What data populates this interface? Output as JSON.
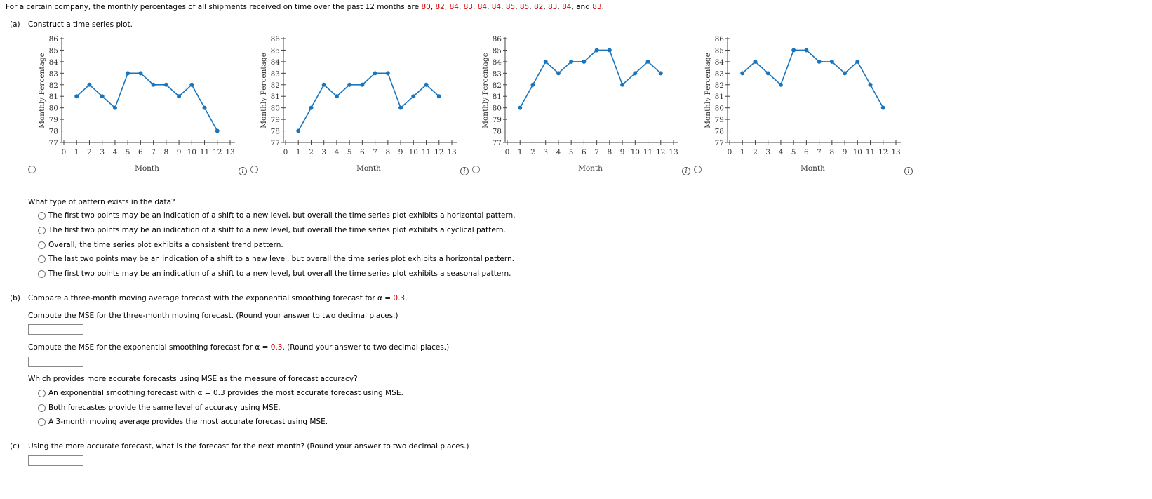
{
  "intro": {
    "lead": "For a certain company, the monthly percentages of all shipments received on time over the past 12 months are ",
    "values": [
      80,
      82,
      84,
      83,
      84,
      84,
      85,
      85,
      82,
      83,
      84,
      83
    ],
    "separators": [
      ", ",
      ", ",
      ", ",
      ", ",
      ", ",
      ", ",
      ", ",
      ", ",
      ", ",
      ", ",
      ", and "
    ],
    "end": "."
  },
  "part_a": {
    "label": "(a)",
    "prompt": "Construct a time series plot.",
    "charts": [
      {
        "type": "line",
        "x": [
          1,
          2,
          3,
          4,
          5,
          6,
          7,
          8,
          9,
          10,
          11,
          12
        ],
        "values": [
          81,
          82,
          81,
          80,
          83,
          83,
          82,
          82,
          81,
          82,
          80,
          78
        ],
        "color": "#1a75bc",
        "xlabel": "Month",
        "ylabel": "Monthly Percentage",
        "xlim": [
          0,
          13
        ],
        "xticks": [
          0,
          1,
          2,
          3,
          4,
          5,
          6,
          7,
          8,
          9,
          10,
          11,
          12,
          13
        ],
        "ylim": [
          77,
          86
        ],
        "yticks": [
          77,
          78,
          79,
          80,
          81,
          82,
          83,
          84,
          85,
          86
        ]
      },
      {
        "type": "line",
        "x": [
          1,
          2,
          3,
          4,
          5,
          6,
          7,
          8,
          9,
          10,
          11,
          12
        ],
        "values": [
          78,
          80,
          82,
          81,
          82,
          82,
          83,
          83,
          80,
          81,
          82,
          81
        ],
        "color": "#1a75bc",
        "xlabel": "Month",
        "ylabel": "Monthly Percentage",
        "xlim": [
          0,
          13
        ],
        "xticks": [
          0,
          1,
          2,
          3,
          4,
          5,
          6,
          7,
          8,
          9,
          10,
          11,
          12,
          13
        ],
        "ylim": [
          77,
          86
        ],
        "yticks": [
          77,
          78,
          79,
          80,
          81,
          82,
          83,
          84,
          85,
          86
        ]
      },
      {
        "type": "line",
        "x": [
          1,
          2,
          3,
          4,
          5,
          6,
          7,
          8,
          9,
          10,
          11,
          12
        ],
        "values": [
          80,
          82,
          84,
          83,
          84,
          84,
          85,
          85,
          82,
          83,
          84,
          83
        ],
        "color": "#1a75bc",
        "xlabel": "Month",
        "ylabel": "Monthly Percentage",
        "xlim": [
          0,
          13
        ],
        "xticks": [
          0,
          1,
          2,
          3,
          4,
          5,
          6,
          7,
          8,
          9,
          10,
          11,
          12,
          13
        ],
        "ylim": [
          77,
          86
        ],
        "yticks": [
          77,
          78,
          79,
          80,
          81,
          82,
          83,
          84,
          85,
          86
        ]
      },
      {
        "type": "line",
        "x": [
          1,
          2,
          3,
          4,
          5,
          6,
          7,
          8,
          9,
          10,
          11,
          12
        ],
        "values": [
          83,
          84,
          83,
          82,
          85,
          85,
          84,
          84,
          83,
          84,
          82,
          80
        ],
        "color": "#1a75bc",
        "xlabel": "Month",
        "ylabel": "Monthly Percentage",
        "xlim": [
          0,
          13
        ],
        "xticks": [
          0,
          1,
          2,
          3,
          4,
          5,
          6,
          7,
          8,
          9,
          10,
          11,
          12,
          13
        ],
        "ylim": [
          77,
          86
        ],
        "yticks": [
          77,
          78,
          79,
          80,
          81,
          82,
          83,
          84,
          85,
          86
        ]
      }
    ],
    "question": "What type of pattern exists in the data?",
    "options": [
      "The first two points may be an indication of a shift to a new level, but overall the time series plot exhibits a horizontal pattern.",
      "The first two points may be an indication of a shift to a new level, but overall the time series plot exhibits a cyclical pattern.",
      "Overall, the time series plot exhibits a consistent trend pattern.",
      "The last two points may be an indication of a shift to a new level, but overall the time series plot exhibits a horizontal pattern.",
      "The first two points may be an indication of a shift to a new level, but overall the time series plot exhibits a seasonal pattern."
    ]
  },
  "part_b": {
    "label": "(b)",
    "prompt_lead": "Compare a three-month moving average forecast with the exponential smoothing forecast for α = ",
    "alpha": 0.3,
    "prompt_end": ".",
    "q1": "Compute the MSE for the three-month moving forecast. (Round your answer to two decimal places.)",
    "q2_lead": "Compute the MSE for the exponential smoothing forecast for α = ",
    "q2_end": ". (Round your answer to two decimal places.)",
    "q3": "Which provides more accurate forecasts using MSE as the measure of forecast accuracy?",
    "options": [
      "An exponential smoothing forecast with α = 0.3 provides the most accurate forecast using MSE.",
      "Both forecastes provide the same level of accuracy using MSE.",
      "A 3-month moving average provides the most accurate forecast using MSE."
    ]
  },
  "part_c": {
    "label": "(c)",
    "prompt": "Using the more accurate forecast, what is the forecast for the next month? (Round your answer to two decimal places.)"
  }
}
